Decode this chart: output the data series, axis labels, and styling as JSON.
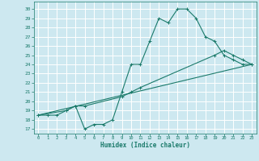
{
  "background_color": "#cde8f0",
  "grid_color": "#ffffff",
  "line_color": "#1a7a6a",
  "xlabel": "Humidex (Indice chaleur)",
  "xlim": [
    -0.5,
    23.5
  ],
  "ylim": [
    16.5,
    30.8
  ],
  "yticks": [
    17,
    18,
    19,
    20,
    21,
    22,
    23,
    24,
    25,
    26,
    27,
    28,
    29,
    30
  ],
  "xticks": [
    0,
    1,
    2,
    3,
    4,
    5,
    6,
    7,
    8,
    9,
    10,
    11,
    12,
    13,
    14,
    15,
    16,
    17,
    18,
    19,
    20,
    21,
    22,
    23
  ],
  "line1_x": [
    0,
    1,
    2,
    3,
    4,
    5,
    6,
    7,
    8,
    9,
    10,
    11,
    12,
    13,
    14,
    15,
    16,
    17,
    18,
    19,
    20,
    21,
    22,
    23
  ],
  "line1_y": [
    18.5,
    18.5,
    18.5,
    19.0,
    19.5,
    17.0,
    17.5,
    17.5,
    18.0,
    21.0,
    24.0,
    24.0,
    26.5,
    29.0,
    28.5,
    30.0,
    30.0,
    29.0,
    27.0,
    26.5,
    25.0,
    24.5,
    24.0,
    24.0
  ],
  "line2_x": [
    0,
    3,
    4,
    5,
    9,
    10,
    11,
    19,
    20,
    21,
    22,
    23
  ],
  "line2_y": [
    18.5,
    19.0,
    19.5,
    19.5,
    20.5,
    21.0,
    21.5,
    25.0,
    25.5,
    25.0,
    24.5,
    24.0
  ],
  "line3_x": [
    0,
    23
  ],
  "line3_y": [
    18.5,
    24.0
  ]
}
